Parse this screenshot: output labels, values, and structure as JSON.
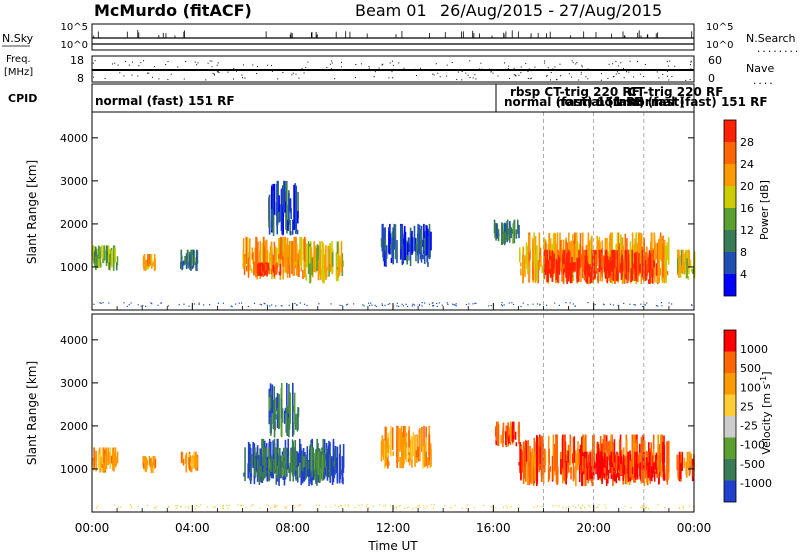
{
  "header": {
    "station": "McMurdo (fitACF)",
    "beam": "Beam 01",
    "date_range": "26/Aug/2015 - 27/Aug/2015"
  },
  "noise_panel": {
    "left_label": "N.Sky",
    "right_label": "N.Search",
    "right_dots": "........",
    "left_ticks": [
      "10^5",
      "10^0"
    ],
    "right_ticks": [
      "10^5",
      "10^0"
    ]
  },
  "freq_panel": {
    "left_label_1": "Freq.",
    "left_label_2": "[MHz]",
    "left_ticks": [
      "18",
      "8"
    ],
    "right_label": "Nave",
    "right_dots": "....",
    "right_ticks": [
      "60",
      "0"
    ]
  },
  "cpid_panel": {
    "label": "CPID",
    "entries": [
      {
        "text": "normal (fast) 151 RF",
        "bold": true
      },
      {
        "text": "rbsp CT-trig 220 RF",
        "bold": true
      },
      {
        "text": "normal (fast) 151 RF",
        "bold": true
      },
      {
        "text": "CT-trig 220 RF",
        "bold": true
      },
      {
        "text": "normal (fast) 151 RF",
        "bold": true
      },
      {
        "text": "normal (fast)",
        "bold": true
      },
      {
        "text": "normal (fast)",
        "bold": true
      }
    ]
  },
  "x_axis": {
    "label": "Time UT",
    "ticks": [
      "00:00",
      "04:00",
      "08:00",
      "12:00",
      "16:00",
      "20:00",
      "00:00"
    ]
  },
  "colors": {
    "power_scale": [
      "#0000ff",
      "#1f4fb4",
      "#3a7a54",
      "#5aa030",
      "#cccc00",
      "#ff9900",
      "#ff6600",
      "#ff2200"
    ],
    "velocity_scale": [
      "#1f3fcc",
      "#3a7a54",
      "#5aa030",
      "#cccccc",
      "#ffcc33",
      "#ff9900",
      "#ff6600",
      "#ff0000"
    ]
  },
  "chart_data": [
    {
      "type": "heatmap",
      "title": "",
      "xlabel": "",
      "ylabel": "Slant Range [km]",
      "xlim": [
        0,
        24
      ],
      "ylim": [
        0,
        4600
      ],
      "y_ticks": [
        1000,
        2000,
        3000,
        4000
      ],
      "colorbar": {
        "label": "Power [dB]",
        "ticks": [
          "28",
          "24",
          "20",
          "16",
          "12",
          "8",
          "4"
        ]
      },
      "regions": [
        {
          "t0": 0.0,
          "t1": 1.0,
          "r0": 900,
          "r1": 1500,
          "level": 3
        },
        {
          "t0": 2.0,
          "t1": 2.5,
          "r0": 900,
          "r1": 1300,
          "level": 5
        },
        {
          "t0": 3.5,
          "t1": 4.2,
          "r0": 900,
          "r1": 1400,
          "level": 2
        },
        {
          "t0": 6.0,
          "t1": 8.5,
          "r0": 700,
          "r1": 1700,
          "level": 5
        },
        {
          "t0": 6.5,
          "t1": 7.5,
          "r0": 750,
          "r1": 1100,
          "level": 7
        },
        {
          "t0": 8.5,
          "t1": 10.0,
          "r0": 600,
          "r1": 1600,
          "level": 4
        },
        {
          "t0": 7.0,
          "t1": 8.2,
          "r0": 1700,
          "r1": 3000,
          "level": 1
        },
        {
          "t0": 11.5,
          "t1": 13.5,
          "r0": 1000,
          "r1": 2000,
          "level": 1
        },
        {
          "t0": 16.0,
          "t1": 17.0,
          "r0": 1500,
          "r1": 2100,
          "level": 2
        },
        {
          "t0": 17.0,
          "t1": 23.0,
          "r0": 600,
          "r1": 1800,
          "level": 5
        },
        {
          "t0": 18.0,
          "t1": 22.5,
          "r0": 600,
          "r1": 1400,
          "level": 7
        },
        {
          "t0": 23.3,
          "t1": 24.0,
          "r0": 700,
          "r1": 1400,
          "level": 4
        }
      ]
    },
    {
      "type": "heatmap",
      "title": "",
      "xlabel": "Time UT",
      "ylabel": "Slant Range [km]",
      "xlim": [
        0,
        24
      ],
      "ylim": [
        0,
        4600
      ],
      "y_ticks": [
        1000,
        2000,
        3000,
        4000
      ],
      "colorbar": {
        "label": "Velocity [m s^-1]",
        "ticks": [
          "1000",
          "500",
          "100",
          "25",
          "-25",
          "-100",
          "-500",
          "-1000"
        ]
      },
      "regions": [
        {
          "t0": 0.0,
          "t1": 1.0,
          "r0": 900,
          "r1": 1500,
          "level": 5
        },
        {
          "t0": 2.0,
          "t1": 2.5,
          "r0": 900,
          "r1": 1300,
          "level": 5
        },
        {
          "t0": 3.5,
          "t1": 4.2,
          "r0": 900,
          "r1": 1400,
          "level": 5
        },
        {
          "t0": 6.0,
          "t1": 10.0,
          "r0": 600,
          "r1": 1700,
          "level": 0
        },
        {
          "t0": 6.3,
          "t1": 9.5,
          "r0": 700,
          "r1": 1500,
          "level": 1
        },
        {
          "t0": 7.0,
          "t1": 8.2,
          "r0": 1700,
          "r1": 3000,
          "level": 1
        },
        {
          "t0": 11.5,
          "t1": 13.5,
          "r0": 1000,
          "r1": 2000,
          "level": 5
        },
        {
          "t0": 16.0,
          "t1": 17.0,
          "r0": 1500,
          "r1": 2100,
          "level": 6
        },
        {
          "t0": 17.0,
          "t1": 23.0,
          "r0": 600,
          "r1": 1800,
          "level": 6
        },
        {
          "t0": 19.5,
          "t1": 22.5,
          "r0": 700,
          "r1": 1400,
          "level": 7
        },
        {
          "t0": 23.3,
          "t1": 24.0,
          "r0": 700,
          "r1": 1400,
          "level": 6
        }
      ]
    }
  ]
}
